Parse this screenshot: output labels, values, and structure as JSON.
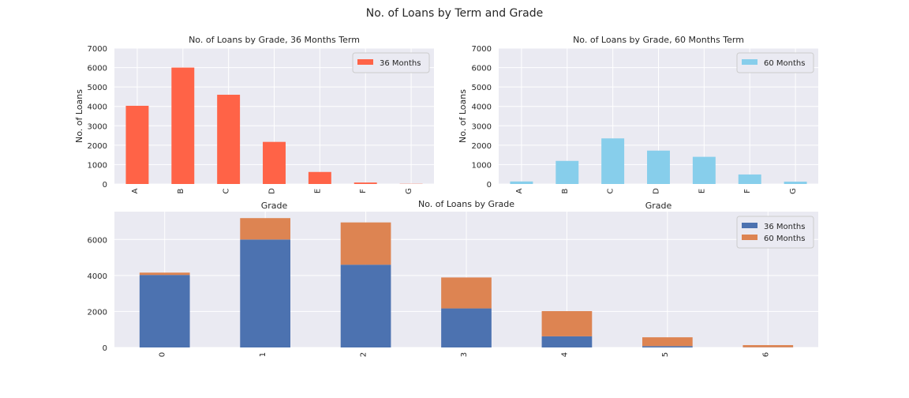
{
  "figure": {
    "suptitle": "No. of Loans by Term and Grade",
    "colors": {
      "panel_bg": "#EAEAF2",
      "grid": "#FFFFFF",
      "term36_top": "#FF6347",
      "term60_top": "#87CEEB",
      "term36_stack": "#4C72B0",
      "term60_stack": "#DD8452"
    }
  },
  "chart_data": [
    {
      "type": "bar",
      "title": "No. of Loans by Grade, 36 Months Term",
      "xlabel": "Grade",
      "ylabel": "No. of Loans",
      "categories": [
        "A",
        "B",
        "C",
        "D",
        "E",
        "F",
        "G"
      ],
      "series": [
        {
          "name": "36 Months",
          "values": [
            4030,
            6000,
            4600,
            2170,
            620,
            75,
            10
          ],
          "color": "#FF6347"
        }
      ],
      "ylim": [
        0,
        7000
      ],
      "yticks": [
        0,
        1000,
        2000,
        3000,
        4000,
        5000,
        6000,
        7000
      ],
      "grid": true,
      "legend": "top-right"
    },
    {
      "type": "bar",
      "title": "No. of Loans by Grade, 60 Months Term",
      "xlabel": "Grade",
      "ylabel": "No. of Loans",
      "categories": [
        "A",
        "B",
        "C",
        "D",
        "E",
        "F",
        "G"
      ],
      "series": [
        {
          "name": "60 Months",
          "values": [
            130,
            1190,
            2350,
            1720,
            1400,
            490,
            120
          ],
          "color": "#87CEEB"
        }
      ],
      "ylim": [
        0,
        7000
      ],
      "yticks": [
        0,
        1000,
        2000,
        3000,
        4000,
        5000,
        6000,
        7000
      ],
      "grid": true,
      "legend": "top-right"
    },
    {
      "type": "bar",
      "stacked": true,
      "title": "No. of Loans by Grade",
      "xlabel": "",
      "ylabel": "",
      "categories": [
        "0",
        "1",
        "2",
        "3",
        "4",
        "5",
        "6"
      ],
      "series": [
        {
          "name": "36 Months",
          "values": [
            4030,
            6000,
            4600,
            2170,
            620,
            75,
            10
          ],
          "color": "#4C72B0"
        },
        {
          "name": "60 Months",
          "values": [
            130,
            1190,
            2350,
            1720,
            1400,
            490,
            120
          ],
          "color": "#DD8452"
        }
      ],
      "ylim": [
        0,
        7550
      ],
      "yticks": [
        0,
        2000,
        4000,
        6000
      ],
      "grid": true,
      "legend": "top-right"
    }
  ]
}
